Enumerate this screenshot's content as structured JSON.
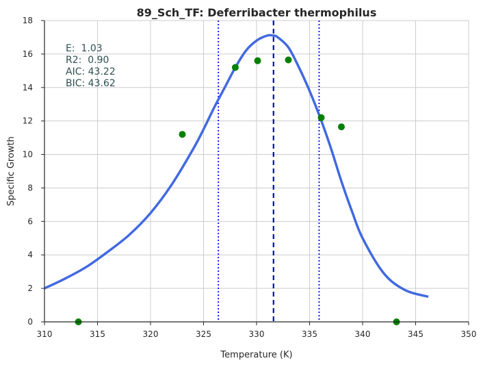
{
  "chart_data": {
    "type": "line",
    "title": "89_Sch_TF: Deferribacter thermophilus",
    "xlabel": "Temperature (K)",
    "ylabel": "Specific Growth",
    "xlim": [
      310,
      350
    ],
    "ylim": [
      0,
      18
    ],
    "x_ticks": [
      310,
      315,
      320,
      325,
      330,
      335,
      340,
      345,
      350
    ],
    "y_ticks": [
      0,
      2,
      4,
      6,
      8,
      10,
      12,
      14,
      16,
      18
    ],
    "x_tick_labels": [
      "310",
      "315",
      "320",
      "325",
      "330",
      "335",
      "340",
      "345",
      "350"
    ],
    "y_tick_labels": [
      "0",
      "2",
      "4",
      "6",
      "8",
      "10",
      "12",
      "14",
      "16",
      "18"
    ],
    "grid": true,
    "stats": [
      "E:  1.03",
      "R2:  0.90",
      "AIC: 43.22",
      "BIC: 43.62"
    ],
    "colors": {
      "curve": "#4169e1",
      "points": "#008000",
      "peak_line": "#0000cd",
      "bound_lines": "#0000ff",
      "grid": "#cccccc",
      "text": "#2f4f4f"
    },
    "observed_points": {
      "x": [
        313.2,
        323.0,
        328.0,
        330.1,
        333.0,
        336.1,
        338.0,
        343.2
      ],
      "y": [
        0.0,
        11.2,
        15.2,
        15.6,
        15.65,
        12.2,
        11.65,
        0.0
      ]
    },
    "fitted_curve": {
      "x": [
        310.0,
        312.0,
        314.0,
        316.0,
        318.0,
        320.0,
        322.0,
        324.0,
        325.0,
        326.0,
        327.0,
        328.0,
        329.0,
        330.0,
        331.0,
        331.6,
        332.0,
        333.0,
        334.0,
        335.0,
        336.0,
        337.0,
        338.0,
        339.0,
        340.0,
        342.0,
        344.0,
        346.2
      ],
      "y": [
        2.0,
        2.6,
        3.3,
        4.2,
        5.2,
        6.5,
        8.2,
        10.3,
        11.5,
        12.8,
        14.0,
        15.2,
        16.2,
        16.8,
        17.1,
        17.1,
        17.0,
        16.4,
        15.2,
        13.8,
        12.2,
        10.4,
        8.4,
        6.6,
        5.0,
        2.9,
        1.9,
        1.5
      ]
    },
    "peak_temperature": 331.6,
    "bound_temperatures": [
      326.4,
      335.9
    ]
  }
}
